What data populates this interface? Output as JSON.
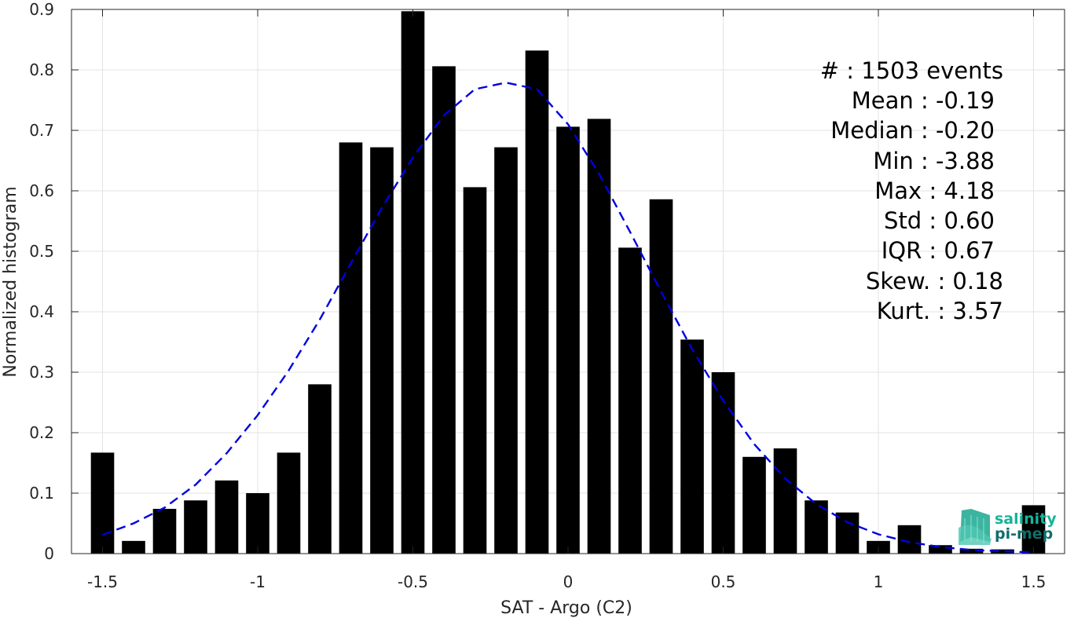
{
  "chart_data": {
    "type": "bar",
    "xlabel": "SAT - Argo (C2)",
    "ylabel": "Normalized histogram",
    "xlim": [
      -1.6,
      1.6
    ],
    "ylim": [
      0,
      0.9
    ],
    "grid": true,
    "x_ticks": [
      -1.5,
      -1,
      -0.5,
      0,
      0.5,
      1,
      1.5
    ],
    "x_tick_labels": [
      "-1.5",
      "-1",
      "-0.5",
      "0",
      "0.5",
      "1",
      "1.5"
    ],
    "y_ticks": [
      0,
      0.1,
      0.2,
      0.3,
      0.4,
      0.5,
      0.6,
      0.7,
      0.8,
      0.9
    ],
    "y_tick_labels": [
      "0",
      "0.1",
      "0.2",
      "0.3",
      "0.4",
      "0.5",
      "0.6",
      "0.7",
      "0.8",
      "0.9"
    ],
    "bar_width": 0.075,
    "bar_color": "#000000",
    "bars": {
      "x": [
        -1.5,
        -1.4,
        -1.3,
        -1.2,
        -1.1,
        -1.0,
        -0.9,
        -0.8,
        -0.7,
        -0.6,
        -0.5,
        -0.4,
        -0.3,
        -0.2,
        -0.1,
        0.0,
        0.1,
        0.2,
        0.3,
        0.4,
        0.5,
        0.6,
        0.7,
        0.8,
        0.9,
        1.0,
        1.1,
        1.2,
        1.3,
        1.4,
        1.5
      ],
      "values": [
        0.167,
        0.021,
        0.074,
        0.088,
        0.121,
        0.1,
        0.167,
        0.28,
        0.68,
        0.672,
        0.897,
        0.806,
        0.606,
        0.672,
        0.832,
        0.706,
        0.719,
        0.506,
        0.586,
        0.354,
        0.3,
        0.16,
        0.174,
        0.088,
        0.068,
        0.021,
        0.047,
        0.014,
        0.008,
        0.007,
        0.08
      ]
    },
    "fit_curve": {
      "style": "dashed",
      "color": "#0000e0",
      "x": [
        -1.5,
        -1.4,
        -1.3,
        -1.2,
        -1.1,
        -1.0,
        -0.9,
        -0.8,
        -0.7,
        -0.6,
        -0.5,
        -0.4,
        -0.3,
        -0.2,
        -0.1,
        0.0,
        0.1,
        0.2,
        0.3,
        0.4,
        0.5,
        0.6,
        0.7,
        0.8,
        0.9,
        1.0,
        1.1,
        1.2,
        1.3,
        1.4,
        1.5
      ],
      "values": [
        0.031,
        0.05,
        0.076,
        0.114,
        0.166,
        0.229,
        0.303,
        0.387,
        0.48,
        0.572,
        0.655,
        0.725,
        0.768,
        0.779,
        0.768,
        0.71,
        0.628,
        0.532,
        0.433,
        0.338,
        0.253,
        0.181,
        0.124,
        0.082,
        0.052,
        0.032,
        0.019,
        0.011,
        0.006,
        0.004,
        0.002
      ]
    },
    "stats_box": {
      "lines": [
        "#  : 1503 events",
        "Mean : -0.19",
        "Median : -0.20",
        "Min : -3.88",
        "Max : 4.18",
        "Std : 0.60",
        "IQR : 0.67",
        "Skew. : 0.18",
        "Kurt. : 3.57"
      ]
    }
  },
  "logo": {
    "line1": "salinity",
    "line2": "pi-mep",
    "color1": "#17b39a",
    "color2": "#0e6e6a"
  }
}
